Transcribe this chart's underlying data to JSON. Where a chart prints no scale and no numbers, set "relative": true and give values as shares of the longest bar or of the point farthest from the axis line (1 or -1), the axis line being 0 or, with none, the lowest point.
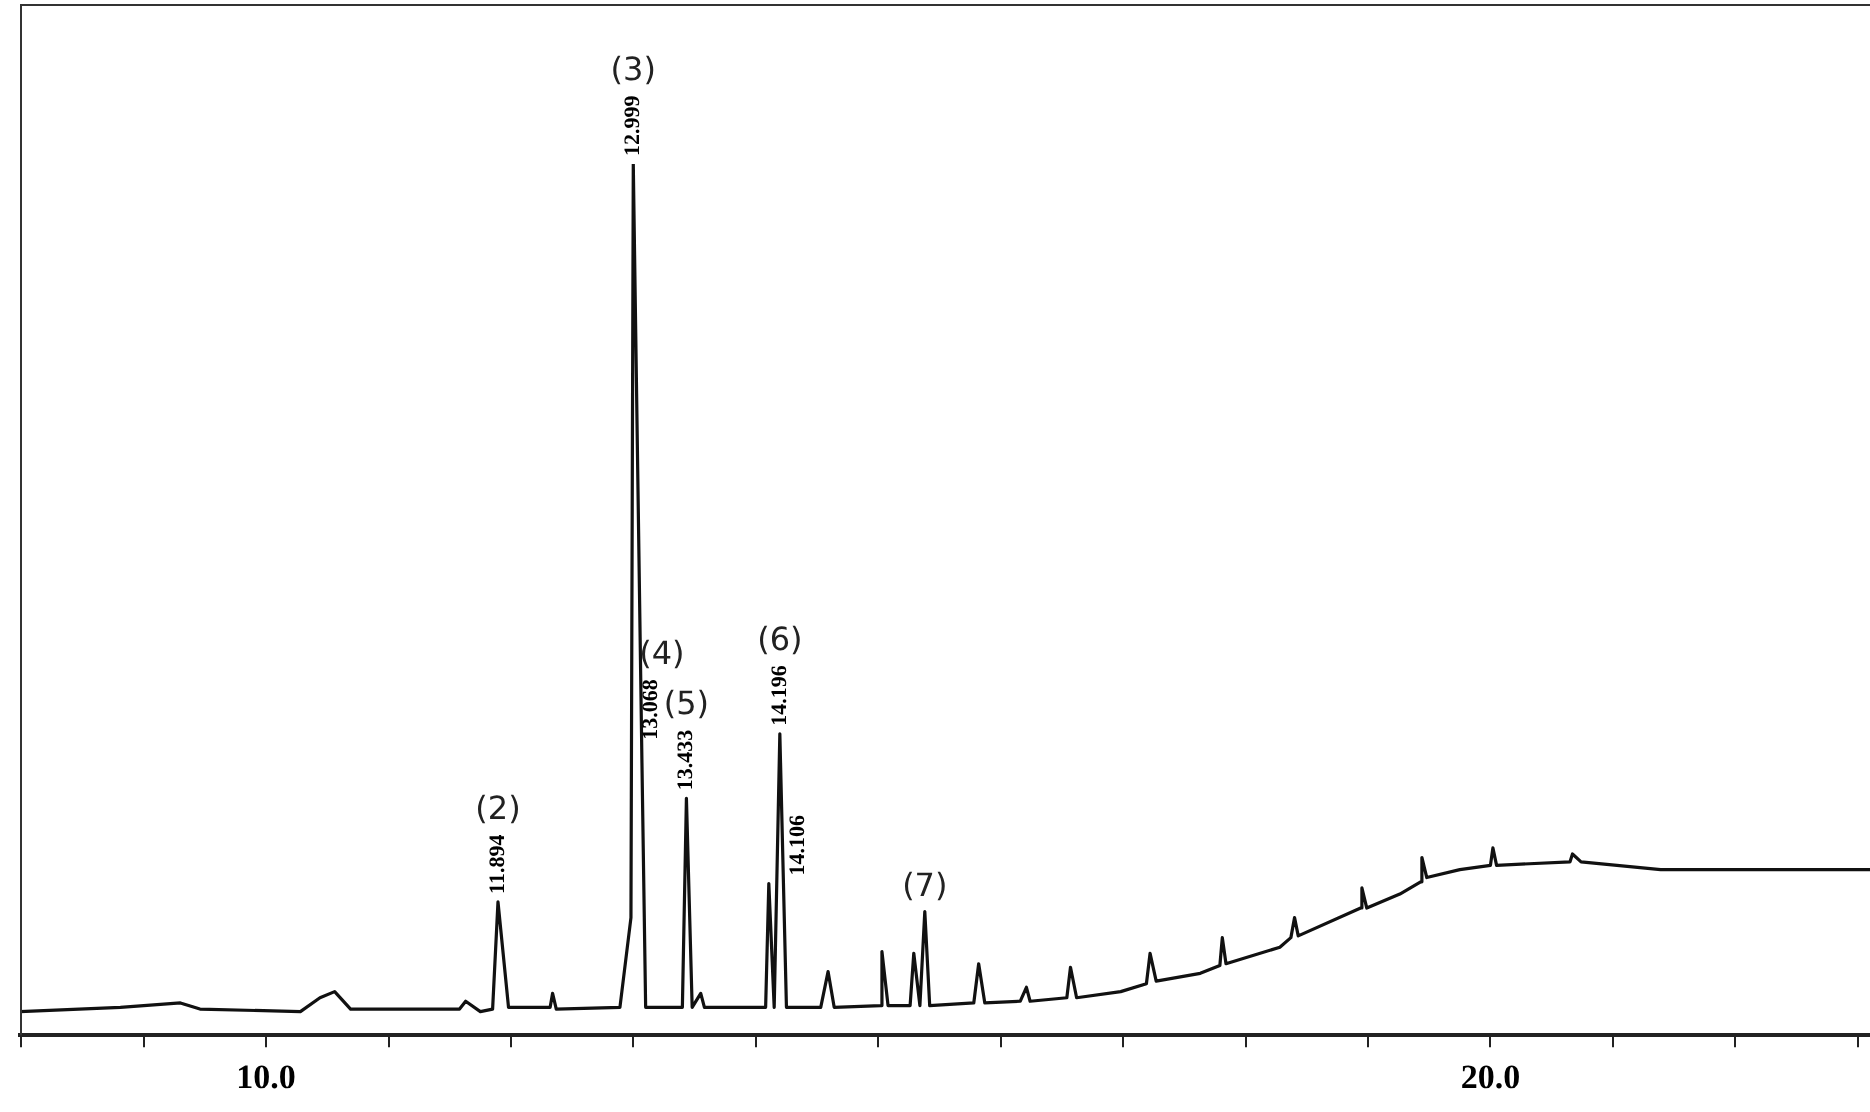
{
  "chart_data": {
    "type": "line",
    "relative": true,
    "marker": "none",
    "grid": false,
    "legend": false,
    "tick_labels": "x",
    "xlim": [
      7.99,
      23.1
    ],
    "xticks": [
      {
        "value": 8,
        "label": null
      },
      {
        "value": 9,
        "label": null
      },
      {
        "value": 10,
        "label": "10.0"
      },
      {
        "value": 11,
        "label": null
      },
      {
        "value": 12,
        "label": null
      },
      {
        "value": 13,
        "label": null
      },
      {
        "value": 14,
        "label": null
      },
      {
        "value": 15,
        "label": null
      },
      {
        "value": 16,
        "label": null
      },
      {
        "value": 17,
        "label": null
      },
      {
        "value": 18,
        "label": null
      },
      {
        "value": 19,
        "label": null
      },
      {
        "value": 20,
        "label": "20.0"
      },
      {
        "value": 21,
        "label": null
      },
      {
        "value": 22,
        "label": null
      },
      {
        "value": 23,
        "label": null
      }
    ],
    "series": [
      {
        "color": "#111111",
        "x": [
          7.99,
          8.81,
          9.3,
          9.46,
          10.28,
          10.44,
          10.56,
          10.69,
          11.58,
          11.63,
          11.75,
          11.85,
          11.894,
          11.98,
          12.32,
          12.34,
          12.37,
          12.89,
          12.98,
          12.999,
          13.068,
          13.1,
          13.4,
          13.433,
          13.48,
          13.55,
          13.58,
          13.95,
          14.08,
          14.106,
          14.15,
          14.196,
          14.25,
          14.53,
          14.59,
          14.64,
          15.02,
          15.03,
          15.08,
          15.26,
          15.29,
          15.34,
          15.38,
          15.42,
          15.78,
          15.82,
          15.87,
          16.16,
          16.21,
          16.24,
          16.54,
          16.57,
          16.62,
          16.98,
          17.19,
          17.22,
          17.27,
          17.63,
          17.79,
          17.81,
          17.84,
          18.28,
          18.37,
          18.4,
          18.43,
          18.94,
          18.95,
          18.99,
          19.26,
          19.43,
          19.44,
          19.48,
          19.75,
          20.0,
          20.02,
          20.05,
          20.65,
          20.67,
          20.74,
          21.39,
          23.1
        ],
        "values": [
          0.027,
          0.032,
          0.037,
          0.03,
          0.027,
          0.043,
          0.05,
          0.03,
          0.03,
          0.039,
          0.027,
          0.03,
          0.153,
          0.032,
          0.032,
          0.048,
          0.03,
          0.032,
          0.135,
          1,
          0.33,
          0.032,
          0.032,
          0.272,
          0.032,
          0.048,
          0.032,
          0.032,
          0.032,
          0.174,
          0.032,
          0.346,
          0.032,
          0.032,
          0.073,
          0.032,
          0.034,
          0.096,
          0.034,
          0.034,
          0.094,
          0.034,
          0.142,
          0.034,
          0.037,
          0.082,
          0.037,
          0.039,
          0.055,
          0.039,
          0.043,
          0.078,
          0.043,
          0.05,
          0.059,
          0.094,
          0.062,
          0.071,
          0.08,
          0.112,
          0.082,
          0.101,
          0.112,
          0.135,
          0.114,
          0.146,
          0.169,
          0.146,
          0.162,
          0.176,
          0.204,
          0.181,
          0.19,
          0.195,
          0.215,
          0.195,
          0.199,
          0.208,
          0.199,
          0.19,
          0.19
        ]
      }
    ],
    "annotations": [
      {
        "text": "11.894",
        "x": 11.894,
        "y": 0.153
      },
      {
        "text": "(2)",
        "x": 11.894,
        "y": 0.153
      },
      {
        "text": "12.999",
        "x": 12.999,
        "y": 1
      },
      {
        "text": "(3)",
        "x": 12.999,
        "y": 1
      },
      {
        "text": "13.068",
        "x": 13.068,
        "y": 0.33
      },
      {
        "text": "(4)",
        "x": 13.068,
        "y": 0.33
      },
      {
        "text": "13.433",
        "x": 13.433,
        "y": 0.272
      },
      {
        "text": "(5)",
        "x": 13.433,
        "y": 0.272
      },
      {
        "text": "14.106",
        "x": 14.106,
        "y": 0.174
      },
      {
        "text": "14.196",
        "x": 14.196,
        "y": 0.346
      },
      {
        "text": "(6)",
        "x": 14.196,
        "y": 0.346
      },
      {
        "text": "(7)",
        "x": 15.38,
        "y": 0.142
      }
    ]
  }
}
